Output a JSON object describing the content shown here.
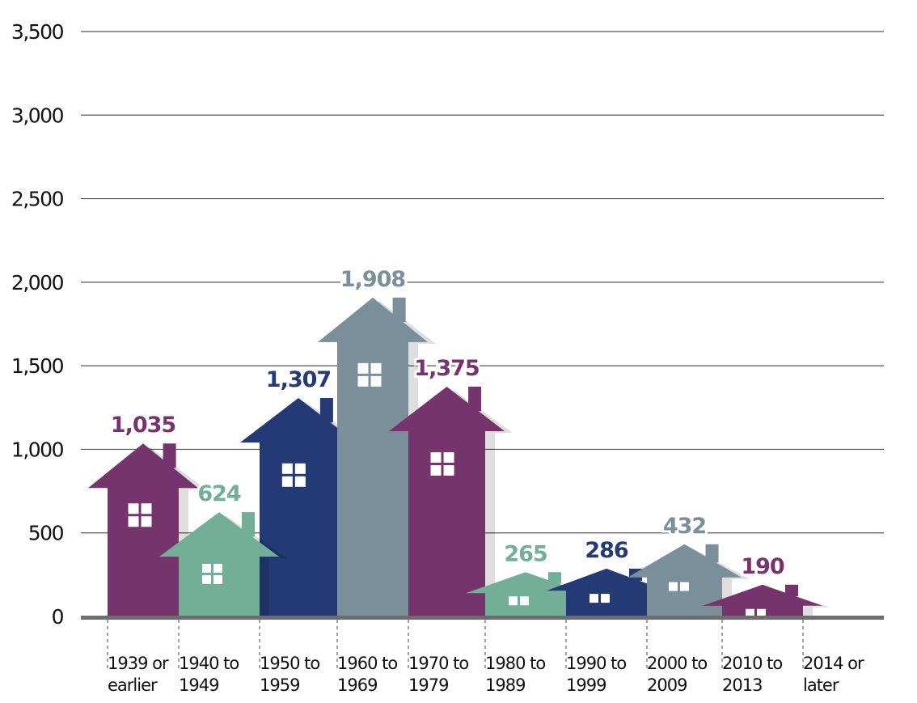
{
  "chart_data": {
    "type": "bar",
    "title": "",
    "xlabel": "",
    "ylabel": "",
    "ylim": [
      0,
      3500
    ],
    "yticks": [
      0,
      500,
      1000,
      1500,
      2000,
      2500,
      3000,
      3500
    ],
    "ytick_labels": [
      "0",
      "500",
      "1,000",
      "1,500",
      "2,000",
      "2,500",
      "3,000",
      "3,500"
    ],
    "categories": [
      [
        "1939 or",
        "earlier"
      ],
      [
        "1940 to",
        "1949"
      ],
      [
        "1950 to",
        "1959"
      ],
      [
        "1960 to",
        "1969"
      ],
      [
        "1970 to",
        "1979"
      ],
      [
        "1980 to",
        "1989"
      ],
      [
        "1990 to",
        "1999"
      ],
      [
        "2000 to",
        "2009"
      ],
      [
        "2010 to",
        "2013"
      ],
      [
        "2014 or",
        "later"
      ]
    ],
    "values": [
      1035,
      624,
      1307,
      1908,
      1375,
      265,
      286,
      432,
      190,
      null
    ],
    "value_labels": [
      "1,035",
      "624",
      "1,307",
      "1,908",
      "1,375",
      "265",
      "286",
      "432",
      "190",
      ""
    ],
    "colors": [
      "#76346c",
      "#73ae97",
      "#243a74",
      "#7b8f9a",
      "#76346c",
      "#73ae97",
      "#243a74",
      "#7b8f9a",
      "#76346c",
      "#ffffff"
    ],
    "mark_style": "house-shaped bars"
  }
}
